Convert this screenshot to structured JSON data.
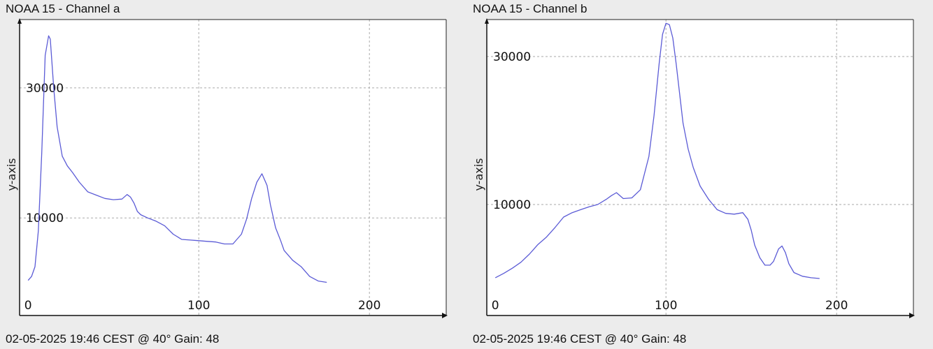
{
  "chart_data": [
    {
      "type": "line",
      "title": "NOAA 15 - Channel a",
      "footer": "02-05-2025 19:46 CEST @ 40° Gain: 48",
      "xlabel": "",
      "ylabel": "y-axis",
      "xlim": [
        -5,
        245
      ],
      "ylim": [
        -5000,
        40500
      ],
      "x_ticks": [
        0,
        100,
        200
      ],
      "y_ticks": [
        10000,
        30000
      ],
      "grid": true,
      "line_color": "#5b5bd6",
      "x": [
        0,
        2,
        4,
        6,
        8,
        10,
        12,
        13,
        15,
        17,
        20,
        23,
        26,
        30,
        35,
        40,
        45,
        50,
        55,
        58,
        60,
        62,
        64,
        66,
        70,
        75,
        80,
        85,
        90,
        95,
        100,
        105,
        110,
        115,
        120,
        125,
        128,
        131,
        134,
        137,
        140,
        142,
        145,
        148,
        150,
        155,
        160,
        165,
        170,
        175
      ],
      "y": [
        400,
        1000,
        2500,
        8000,
        20000,
        35000,
        38000,
        37500,
        30000,
        24000,
        19500,
        18000,
        17000,
        15500,
        14000,
        13500,
        13000,
        12800,
        12900,
        13600,
        13200,
        12300,
        11000,
        10500,
        10000,
        9500,
        8800,
        7500,
        6700,
        6600,
        6500,
        6400,
        6300,
        6000,
        6000,
        7500,
        9800,
        13000,
        15500,
        16800,
        15000,
        12000,
        8500,
        6500,
        5000,
        3500,
        2500,
        1000,
        300,
        100
      ]
    },
    {
      "type": "line",
      "title": "NOAA 15 - Channel b",
      "footer": "02-05-2025 19:46 CEST @ 40° Gain: 48",
      "xlabel": "",
      "ylabel": "y-axis",
      "xlim": [
        -5,
        245
      ],
      "ylim": [
        -5000,
        35000
      ],
      "x_ticks": [
        0,
        100,
        200
      ],
      "y_ticks": [
        10000,
        30000
      ],
      "grid": true,
      "line_color": "#5b5bd6",
      "x": [
        0,
        5,
        10,
        15,
        20,
        25,
        30,
        35,
        40,
        45,
        50,
        55,
        60,
        65,
        68,
        71,
        73,
        75,
        80,
        85,
        90,
        93,
        96,
        98,
        100,
        102,
        104,
        106,
        108,
        110,
        113,
        116,
        120,
        125,
        130,
        135,
        140,
        145,
        148,
        150,
        152,
        155,
        158,
        161,
        163,
        166,
        168,
        170,
        172,
        175,
        180,
        185,
        190
      ],
      "y": [
        100,
        700,
        1400,
        2200,
        3300,
        4600,
        5600,
        6900,
        8300,
        8900,
        9300,
        9700,
        10000,
        10700,
        11200,
        11600,
        11200,
        10800,
        10900,
        12000,
        16500,
        22000,
        29000,
        33000,
        34500,
        34300,
        32500,
        29000,
        25000,
        21000,
        17500,
        15000,
        12500,
        10700,
        9300,
        8800,
        8700,
        8900,
        8000,
        6500,
        4500,
        2800,
        1800,
        1800,
        2300,
        4000,
        4400,
        3500,
        2000,
        800,
        300,
        100,
        0
      ]
    }
  ]
}
